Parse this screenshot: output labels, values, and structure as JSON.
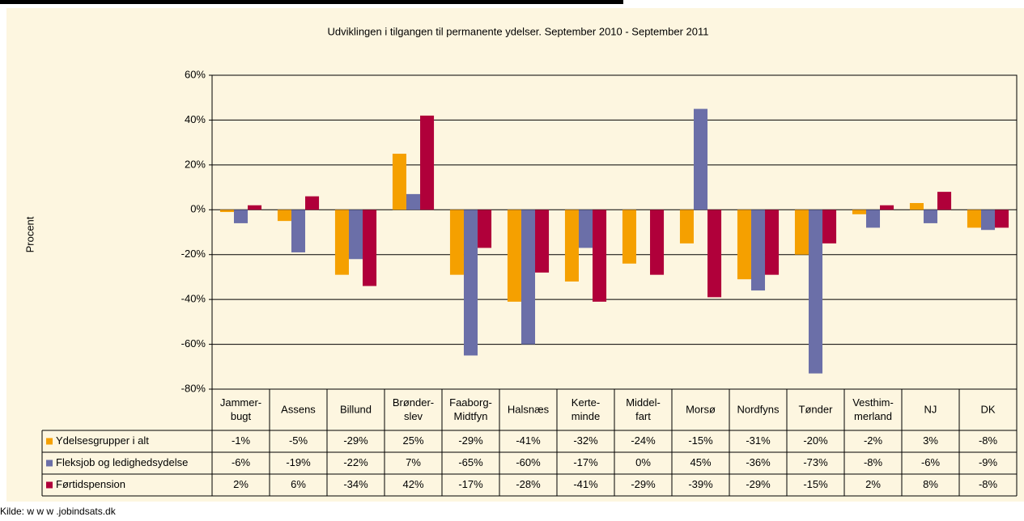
{
  "chart_data": {
    "type": "bar",
    "title": "Udviklingen i tilgangen til permanente ydelser. September 2010 - September 2011",
    "y_label": "Procent",
    "source": "Kilde: w w w .jobindsats.dk",
    "categories": [
      [
        "Jammer-",
        "bugt"
      ],
      [
        "Assens"
      ],
      [
        "Billund"
      ],
      [
        "Brønder-",
        "slev"
      ],
      [
        "Faaborg-",
        "Midtfyn"
      ],
      [
        "Halsnæs"
      ],
      [
        "Kerte-",
        "minde"
      ],
      [
        "Middel-",
        "fart"
      ],
      [
        "Morsø"
      ],
      [
        "Nordfyns"
      ],
      [
        "Tønder"
      ],
      [
        "Vesthim-",
        "merland"
      ],
      [
        "NJ"
      ],
      [
        "DK"
      ]
    ],
    "series": [
      {
        "name": "Ydelsesgrupper i alt",
        "color": "#f5a000",
        "values": [
          -1,
          -5,
          -29,
          25,
          -29,
          -41,
          -32,
          -24,
          -15,
          -31,
          -20,
          -2,
          3,
          -8
        ],
        "value_labels": [
          "-1%",
          "-5%",
          "-29%",
          "25%",
          "-29%",
          "-41%",
          "-32%",
          "-24%",
          "-15%",
          "-31%",
          "-20%",
          "-2%",
          "3%",
          "-8%"
        ]
      },
      {
        "name": "Fleksjob og ledighedsydelse",
        "color": "#6b6fa8",
        "values": [
          -6,
          -19,
          -22,
          7,
          -65,
          -60,
          -17,
          0,
          45,
          -36,
          -73,
          -8,
          -6,
          -9
        ],
        "value_labels": [
          "-6%",
          "-19%",
          "-22%",
          "7%",
          "-65%",
          "-60%",
          "-17%",
          "0%",
          "45%",
          "-36%",
          "-73%",
          "-8%",
          "-6%",
          "-9%"
        ]
      },
      {
        "name": "Førtidspension",
        "color": "#b0003a",
        "values": [
          2,
          6,
          -34,
          42,
          -17,
          -28,
          -41,
          -29,
          -39,
          -29,
          -15,
          2,
          8,
          -8
        ],
        "value_labels": [
          "2%",
          "6%",
          "-34%",
          "42%",
          "-17%",
          "-28%",
          "-41%",
          "-29%",
          "-39%",
          "-29%",
          "-15%",
          "2%",
          "8%",
          "-8%"
        ]
      }
    ],
    "ylim": [
      -80,
      60
    ],
    "yticks": [
      {
        "value": -80,
        "label": "-80%"
      },
      {
        "value": -60,
        "label": "-60%"
      },
      {
        "value": -40,
        "label": "-40%"
      },
      {
        "value": -20,
        "label": "-20%"
      },
      {
        "value": 0,
        "label": "0%"
      },
      {
        "value": 20,
        "label": "20%"
      },
      {
        "value": 40,
        "label": "40%"
      },
      {
        "value": 60,
        "label": "60%"
      }
    ],
    "grid": true
  }
}
